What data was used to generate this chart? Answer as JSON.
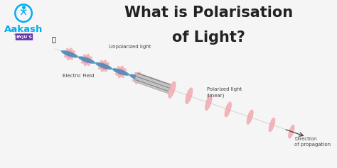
{
  "title_line1": "What is Polarisation",
  "title_line2": "of Light?",
  "title_fontsize": 15,
  "title_fontweight": "bold",
  "title_color": "#222222",
  "bg_color": "#f5f5f5",
  "fig_width": 4.74,
  "fig_height": 2.37,
  "dpi": 100,
  "aakash_text": "Aakash",
  "aakash_color": "#00aeef",
  "byju_color": "#6633aa",
  "label_unpolarized": "Unpolarized light",
  "label_electric": "Electric Field",
  "label_polarized": "Polarized light\n(linear)",
  "label_direction": "Direction\nof propagation",
  "wave_color_pink": "#f0a0a8",
  "wave_color_blue": "#4488bb",
  "polarizer_stripe_light": "#d8d8d8",
  "polarizer_stripe_dark": "#888888",
  "arrow_color": "#444444"
}
